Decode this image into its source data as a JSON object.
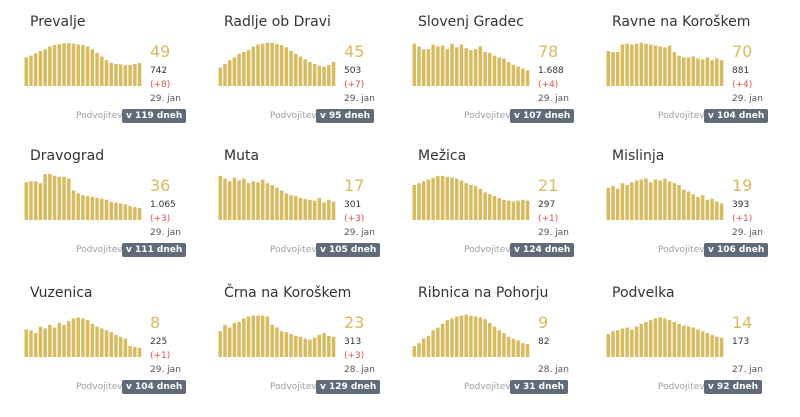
{
  "accent_color": "#d8ba5f",
  "delta_color": "#d9534f",
  "badge_color": "#5f6b78",
  "doubling_label": "Podvojitev",
  "municipalities": [
    {
      "name": "Prevalje",
      "active": "49",
      "total": "742",
      "delta": "(+8)",
      "date": "29. jan",
      "doubling": "v 119 dneh",
      "bars": [
        62,
        66,
        71,
        76,
        80,
        86,
        89,
        91,
        93,
        93,
        92,
        90,
        89,
        86,
        80,
        72,
        64,
        56,
        50,
        48,
        47,
        45,
        46,
        48,
        50
      ]
    },
    {
      "name": "Radlje ob Dravi",
      "active": "45",
      "total": "503",
      "delta": "(+7)",
      "date": "29. jan",
      "doubling": "v 95 dneh",
      "bars": [
        40,
        48,
        56,
        62,
        70,
        74,
        78,
        86,
        90,
        92,
        94,
        94,
        91,
        89,
        84,
        76,
        70,
        64,
        58,
        52,
        48,
        44,
        42,
        46,
        52
      ]
    },
    {
      "name": "Slovenj Gradec",
      "active": "78",
      "total": "1.688",
      "delta": "(+4)",
      "date": "29. jan",
      "doubling": "v 107 dneh",
      "bars": [
        92,
        86,
        80,
        80,
        90,
        86,
        88,
        80,
        92,
        84,
        90,
        82,
        78,
        80,
        86,
        74,
        72,
        66,
        62,
        60,
        52,
        46,
        42,
        38,
        34
      ]
    },
    {
      "name": "Ravne na Koroškem",
      "active": "70",
      "total": "881",
      "delta": "(+4)",
      "date": "29. jan",
      "doubling": "v 104 dneh",
      "bars": [
        76,
        74,
        74,
        90,
        92,
        90,
        92,
        94,
        92,
        90,
        88,
        86,
        84,
        88,
        74,
        66,
        62,
        62,
        64,
        60,
        58,
        62,
        56,
        60,
        56
      ]
    },
    {
      "name": "Dravograd",
      "active": "36",
      "total": "1.065",
      "delta": "(+3)",
      "date": "29. jan",
      "doubling": "v 111 dneh",
      "bars": [
        82,
        84,
        84,
        80,
        100,
        100,
        96,
        94,
        94,
        90,
        64,
        58,
        54,
        52,
        50,
        48,
        46,
        44,
        40,
        38,
        36,
        34,
        30,
        28,
        26
      ]
    },
    {
      "name": "Muta",
      "active": "17",
      "total": "301",
      "delta": "(+3)",
      "date": "29. jan",
      "doubling": "v 105 dneh",
      "bars": [
        96,
        90,
        84,
        92,
        86,
        90,
        80,
        84,
        82,
        88,
        80,
        76,
        70,
        64,
        58,
        54,
        52,
        48,
        46,
        44,
        42,
        48,
        38,
        44,
        40
      ]
    },
    {
      "name": "Mežica",
      "active": "21",
      "total": "297",
      "delta": "(+1)",
      "date": "29. jan",
      "doubling": "v 124 dneh",
      "bars": [
        76,
        80,
        84,
        88,
        92,
        96,
        96,
        94,
        92,
        90,
        86,
        80,
        76,
        74,
        68,
        60,
        56,
        52,
        48,
        44,
        42,
        40,
        42,
        44,
        42
      ]
    },
    {
      "name": "Mislinja",
      "active": "19",
      "total": "393",
      "delta": "(+1)",
      "date": "29. jan",
      "doubling": "v 106 dneh",
      "bars": [
        70,
        74,
        68,
        80,
        76,
        82,
        86,
        88,
        90,
        82,
        88,
        86,
        90,
        84,
        80,
        76,
        66,
        62,
        56,
        50,
        54,
        44,
        46,
        40,
        36
      ]
    },
    {
      "name": "Vuzenica",
      "active": "8",
      "total": "225",
      "delta": "(+1)",
      "date": "29. jan",
      "doubling": "v 104 dneh",
      "bars": [
        60,
        58,
        52,
        66,
        62,
        70,
        64,
        74,
        70,
        78,
        84,
        86,
        84,
        80,
        72,
        66,
        62,
        58,
        54,
        48,
        44,
        40,
        24,
        22,
        20
      ]
    },
    {
      "name": "Črna na Koroškem",
      "active": "23",
      "total": "313",
      "delta": "(+3)",
      "date": "28. jan",
      "doubling": "v 129 dneh",
      "bars": [
        56,
        70,
        64,
        74,
        76,
        84,
        88,
        90,
        90,
        90,
        88,
        70,
        64,
        56,
        54,
        50,
        46,
        44,
        40,
        38,
        42,
        48,
        52,
        46,
        44
      ]
    },
    {
      "name": "Ribnica na Pohorju",
      "active": "9",
      "total": "82",
      "delta": "",
      "date": "28. jan",
      "doubling": "v 31 dneh",
      "bars": [
        24,
        30,
        40,
        46,
        58,
        64,
        72,
        80,
        84,
        88,
        90,
        92,
        90,
        88,
        86,
        82,
        74,
        66,
        58,
        52,
        44,
        40,
        36,
        30,
        28
      ]
    },
    {
      "name": "Podvelka",
      "active": "14",
      "total": "173",
      "delta": "",
      "date": "27. jan",
      "doubling": "v 92 dneh",
      "bars": [
        50,
        56,
        58,
        62,
        64,
        60,
        66,
        72,
        76,
        80,
        84,
        86,
        84,
        80,
        76,
        72,
        68,
        66,
        64,
        60,
        56,
        52,
        48,
        44,
        42
      ]
    }
  ]
}
